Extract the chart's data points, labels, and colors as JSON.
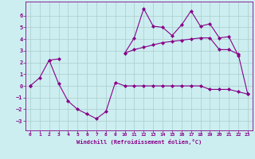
{
  "xlabel": "Windchill (Refroidissement éolien,°C)",
  "bg_color": "#cceef0",
  "grid_color": "#aacccc",
  "line_color": "#880088",
  "x": [
    0,
    1,
    2,
    3,
    4,
    5,
    6,
    7,
    8,
    9,
    10,
    11,
    12,
    13,
    14,
    15,
    16,
    17,
    18,
    19,
    20,
    21,
    22,
    23
  ],
  "curve_spiky": [
    null,
    null,
    null,
    null,
    null,
    null,
    null,
    null,
    null,
    null,
    2.8,
    4.1,
    6.6,
    5.1,
    5.0,
    4.3,
    5.2,
    6.4,
    5.1,
    5.3,
    4.1,
    4.2,
    2.6,
    null
  ],
  "curve_upper": [
    0.0,
    0.7,
    2.2,
    2.3,
    null,
    null,
    null,
    null,
    null,
    null,
    2.8,
    3.1,
    3.3,
    3.5,
    3.7,
    3.8,
    3.9,
    4.0,
    4.1,
    4.1,
    3.1,
    3.1,
    2.7,
    -0.7
  ],
  "curve_lower": [
    0.0,
    null,
    2.2,
    0.2,
    -1.3,
    -2.0,
    -2.4,
    -2.8,
    -2.2,
    0.3,
    0.0,
    0.0,
    0.0,
    0.0,
    0.0,
    0.0,
    0.0,
    0.0,
    0.0,
    -0.3,
    -0.3,
    -0.3,
    -0.5,
    -0.7
  ],
  "ylim": [
    -3.8,
    7.2
  ],
  "xlim": [
    -0.5,
    23.5
  ],
  "yticks": [
    -3,
    -2,
    -1,
    0,
    1,
    2,
    3,
    4,
    5,
    6
  ],
  "xticks": [
    0,
    1,
    2,
    3,
    4,
    5,
    6,
    7,
    8,
    9,
    10,
    11,
    12,
    13,
    14,
    15,
    16,
    17,
    18,
    19,
    20,
    21,
    22,
    23
  ]
}
